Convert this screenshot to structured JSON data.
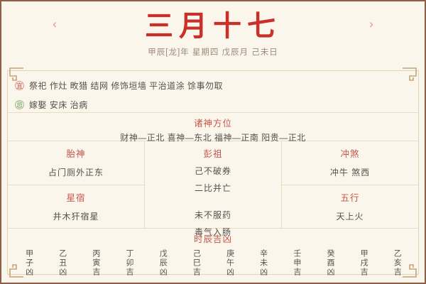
{
  "header": {
    "title": "三月十七",
    "subtitle": "甲辰[龙]年 星期四 戊辰月 己未日",
    "prev_arrow": "‹",
    "next_arrow": "›"
  },
  "suitable": {
    "badge": "宜",
    "items": "祭祀 作灶 畋猎 结网 修饰垣墙 平治道涂 馀事勿取"
  },
  "avoid": {
    "badge": "忌",
    "items": "嫁娶 安床 治病"
  },
  "gods": {
    "heading": "诸神方位",
    "positions": "财神—正北 喜神—东北 福神—正南 阳贵—正北"
  },
  "grid": {
    "taishen": {
      "label": "胎神",
      "value": "占门厕外正东"
    },
    "xingxiu": {
      "label": "星宿",
      "value": "井木犴宿星"
    },
    "pengzu": {
      "label": "彭祖",
      "lines": [
        "己不破券",
        "二比并亡",
        "未不服药",
        "毒气入肠"
      ]
    },
    "chongsha": {
      "label": "冲煞",
      "value": "冲牛 煞西"
    },
    "wuxing": {
      "label": "五行",
      "value": "天上火"
    }
  },
  "hours": {
    "heading": "时辰吉凶",
    "items": [
      "甲子凶",
      "乙丑凶",
      "丙寅吉",
      "丁卯吉",
      "戊辰凶",
      "己巳吉",
      "庚午凶",
      "辛未凶",
      "壬申吉",
      "癸酉凶",
      "甲戌吉",
      "乙亥吉"
    ]
  },
  "colors": {
    "background": "#fbf6ec",
    "frame_border": "#8d5f46",
    "title_red": "#c8302a",
    "heading_red": "#c4564b",
    "body_text": "#56504a",
    "subtitle_text": "#9d8b7a",
    "panel_border": "#e5d3b6",
    "ornament": "#c5a37b",
    "suitable_badge": "#c4564b",
    "avoid_badge": "#6f9a5d"
  }
}
